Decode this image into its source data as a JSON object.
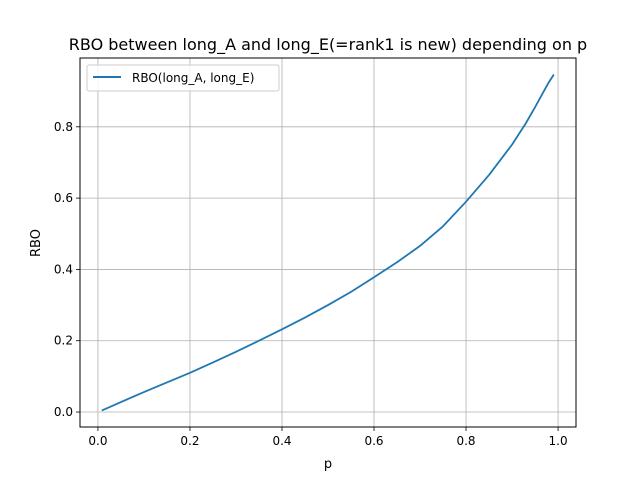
{
  "chart_data": {
    "type": "line",
    "title": "RBO between long_A and long_E(=rank1 is new) depending on p",
    "xlabel": "p",
    "ylabel": "RBO",
    "xlim": [
      -0.039,
      1.039
    ],
    "ylim": [
      -0.042,
      0.993
    ],
    "xticks": [
      0.0,
      0.2,
      0.4,
      0.6,
      0.8,
      1.0
    ],
    "xtick_labels": [
      "0.0",
      "0.2",
      "0.4",
      "0.6",
      "0.8",
      "1.0"
    ],
    "yticks": [
      0.0,
      0.2,
      0.4,
      0.6,
      0.8
    ],
    "ytick_labels": [
      "0.0",
      "0.2",
      "0.4",
      "0.6",
      "0.8"
    ],
    "grid": true,
    "legend_position": "upper-left",
    "series": [
      {
        "name": "RBO(long_A, long_E)",
        "color": "#1f77b4",
        "x": [
          0.01,
          0.05,
          0.1,
          0.15,
          0.2,
          0.25,
          0.3,
          0.35,
          0.4,
          0.45,
          0.5,
          0.55,
          0.6,
          0.65,
          0.7,
          0.75,
          0.8,
          0.85,
          0.9,
          0.93,
          0.95,
          0.97,
          0.98,
          0.99
        ],
        "y": [
          0.005,
          0.028,
          0.056,
          0.083,
          0.11,
          0.139,
          0.169,
          0.2,
          0.232,
          0.265,
          0.3,
          0.337,
          0.378,
          0.42,
          0.466,
          0.521,
          0.59,
          0.665,
          0.75,
          0.81,
          0.855,
          0.902,
          0.925,
          0.945
        ]
      }
    ]
  }
}
